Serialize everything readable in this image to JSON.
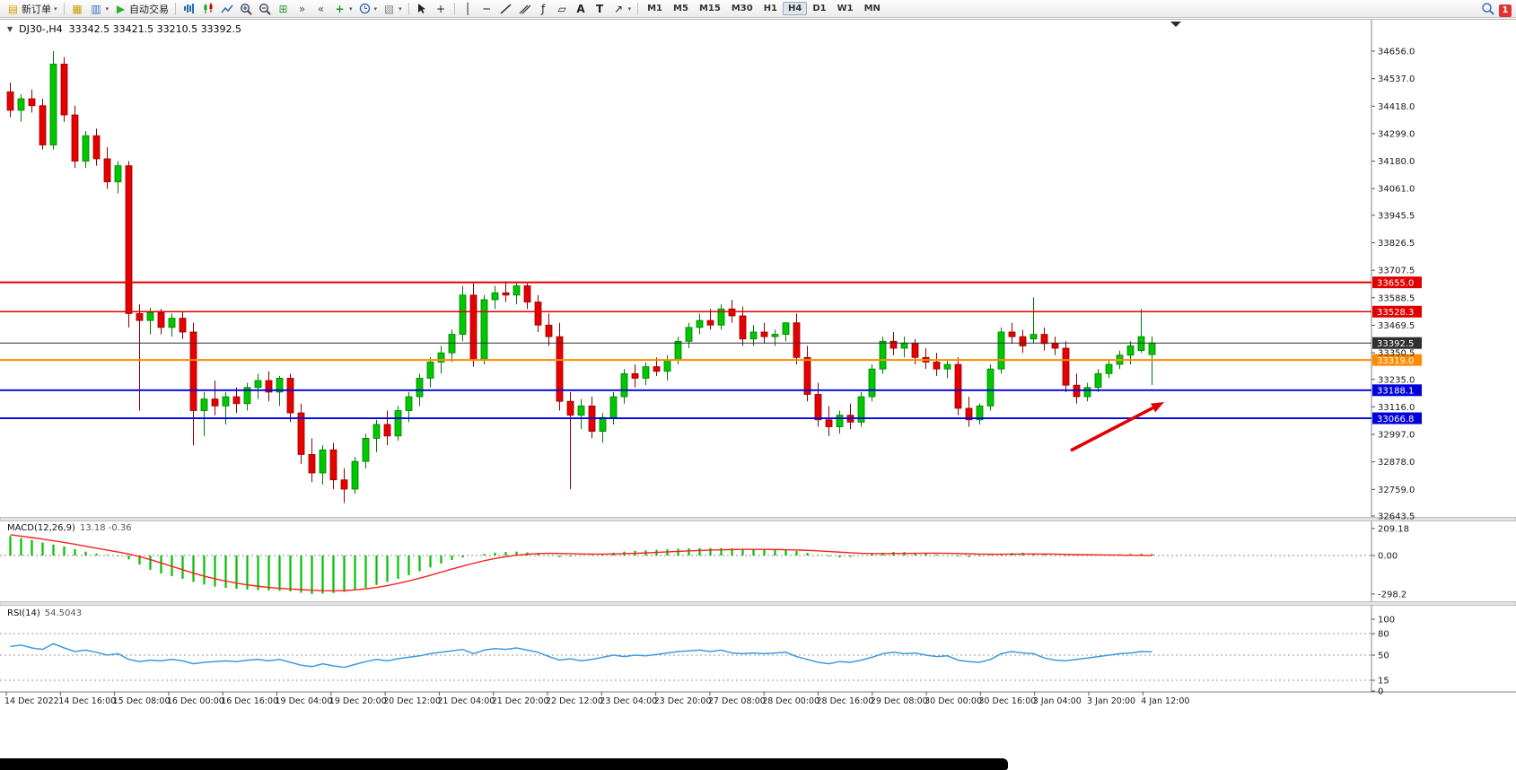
{
  "toolbar": {
    "new_order_label": "新订单",
    "auto_trading_label": "自动交易",
    "notification_count": "1",
    "timeframes": [
      "M1",
      "M5",
      "M15",
      "M30",
      "H1",
      "H4",
      "D1",
      "W1",
      "MN"
    ],
    "active_timeframe": "H4",
    "groups": [
      [
        {
          "name": "new-order-button",
          "icon": "doc",
          "icon_color": "#d9a300",
          "label_key": "new_order_label",
          "caret": true
        }
      ],
      [
        {
          "name": "charts-button",
          "icon": "chartwin",
          "icon_color": "#c8a000"
        },
        {
          "name": "profiles-button",
          "icon": "folder",
          "icon_color": "#3b6fc4",
          "caret": true
        },
        {
          "name": "auto-trading-button",
          "icon": "play",
          "icon_color": "#28b428",
          "label_key": "auto_trading_label"
        }
      ],
      [
        {
          "name": "bar-chart-button",
          "icon": "bars",
          "icon_color": "#1f6fb4"
        },
        {
          "name": "candle-chart-button",
          "icon": "candles",
          "icon_color": "#008000"
        },
        {
          "name": "line-chart-button",
          "icon": "linechart",
          "icon_color": "#1f6fb4"
        },
        {
          "name": "zoom-in-button",
          "icon": "zoomin",
          "icon_color": "#444444"
        },
        {
          "name": "zoom-out-button",
          "icon": "zoomout",
          "icon_color": "#444444"
        },
        {
          "name": "tile-windows-button",
          "icon": "tile",
          "icon_color": "#2f9e2f"
        },
        {
          "name": "auto-scroll-button",
          "icon": "autoscroll",
          "icon_color": "#555555"
        },
        {
          "name": "chart-shift-button",
          "icon": "shift",
          "icon_color": "#555555"
        },
        {
          "name": "indicators-button",
          "icon": "indicator",
          "icon_color": "#1f9e1f",
          "caret": true
        },
        {
          "name": "periods-button",
          "icon": "clock",
          "icon_color": "#2b62b0",
          "caret": true
        },
        {
          "name": "templates-button",
          "icon": "template",
          "icon_color": "#888888",
          "caret": true
        }
      ],
      [
        {
          "name": "cursor-button",
          "icon": "cursor",
          "icon_color": "#222222"
        },
        {
          "name": "crosshair-button",
          "icon": "crosshair",
          "icon_color": "#222222"
        }
      ],
      [
        {
          "name": "vertical-line-button",
          "icon": "vline",
          "icon_color": "#222222"
        },
        {
          "name": "horizontal-line-button",
          "icon": "hline",
          "icon_color": "#222222"
        },
        {
          "name": "trendline-button",
          "icon": "trend",
          "icon_color": "#222222"
        },
        {
          "name": "channel-button",
          "icon": "channel",
          "icon_color": "#222222"
        },
        {
          "name": "fibonacci-button",
          "icon": "fibo",
          "icon_color": "#222222"
        },
        {
          "name": "shapes-button",
          "icon": "shapes",
          "icon_color": "#222222"
        },
        {
          "name": "text-button",
          "icon": "textA",
          "icon_color": "#222222"
        },
        {
          "name": "label-button",
          "icon": "textT",
          "icon_color": "#222222"
        },
        {
          "name": "arrows-button",
          "icon": "arrowtool",
          "icon_color": "#222222",
          "caret": true
        }
      ]
    ]
  },
  "chart_header": {
    "collapse_icon": "▼",
    "symbol_period": "DJ30-,H4",
    "ohlc": "33342.5 33421.5 33210.5 33392.5"
  },
  "indicators": {
    "macd_label": "MACD(12,26,9)",
    "macd_values": "13.18 -0.36",
    "rsi_label": "RSI(14)",
    "rsi_value": "54.5043"
  },
  "chart_data": {
    "type": "candlestick",
    "symbol": "DJ30-",
    "timeframe": "H4",
    "current_bar": {
      "open": 33342.5,
      "high": 33421.5,
      "low": 33210.5,
      "close": 33392.5
    },
    "up_color": "#00C800",
    "down_color": "#E80000",
    "price_axis": {
      "min": 32643.5,
      "max": 34656.0,
      "labels": [
        "34656.0",
        "34537.0",
        "34418.0",
        "34299.0",
        "34180.0",
        "34061.0",
        "33945.5",
        "33826.5",
        "33707.5",
        "33588.5",
        "33469.5",
        "33350.5",
        "33235.0",
        "33116.0",
        "32997.0",
        "32878.0",
        "32759.0",
        "32643.5"
      ]
    },
    "hlines": [
      {
        "price": 33655.0,
        "badge": "33655.0",
        "color": "#E00000",
        "width": 2
      },
      {
        "price": 33528.3,
        "badge": "33528.3",
        "color": "#E00000",
        "width": 1.4
      },
      {
        "price": 33392.5,
        "badge": "33392.5",
        "color": "#303030",
        "width": 1
      },
      {
        "price": 33319.0,
        "badge": "33319.0",
        "color": "#FF8C00",
        "width": 2
      },
      {
        "price": 33188.1,
        "badge": "33188.1",
        "color": "#0000DC",
        "width": 1.8
      },
      {
        "price": 33066.8,
        "badge": "33066.8",
        "color": "#0000DC",
        "width": 1.8
      }
    ],
    "candles": [
      [
        34480,
        34520,
        34370,
        34400
      ],
      [
        34400,
        34470,
        34350,
        34450
      ],
      [
        34450,
        34490,
        34390,
        34420
      ],
      [
        34420,
        34450,
        34230,
        34250
      ],
      [
        34250,
        34656,
        34230,
        34600
      ],
      [
        34600,
        34630,
        34350,
        34380
      ],
      [
        34380,
        34420,
        34150,
        34180
      ],
      [
        34180,
        34310,
        34150,
        34290
      ],
      [
        34290,
        34320,
        34160,
        34190
      ],
      [
        34190,
        34240,
        34060,
        34090
      ],
      [
        34090,
        34180,
        34040,
        34160
      ],
      [
        34160,
        34180,
        33460,
        33520
      ],
      [
        33520,
        33560,
        33100,
        33490
      ],
      [
        33490,
        33545,
        33430,
        33525
      ],
      [
        33525,
        33540,
        33430,
        33460
      ],
      [
        33460,
        33520,
        33420,
        33500
      ],
      [
        33500,
        33530,
        33410,
        33440
      ],
      [
        33440,
        33480,
        32950,
        33100
      ],
      [
        33100,
        33180,
        32990,
        33150
      ],
      [
        33150,
        33230,
        33080,
        33120
      ],
      [
        33120,
        33180,
        33040,
        33160
      ],
      [
        33160,
        33200,
        33090,
        33130
      ],
      [
        33130,
        33220,
        33100,
        33200
      ],
      [
        33200,
        33260,
        33150,
        33230
      ],
      [
        33230,
        33270,
        33140,
        33180
      ],
      [
        33180,
        33250,
        33120,
        33240
      ],
      [
        33240,
        33260,
        33050,
        33090
      ],
      [
        33090,
        33130,
        32870,
        32910
      ],
      [
        32910,
        32980,
        32790,
        32830
      ],
      [
        32830,
        32950,
        32780,
        32930
      ],
      [
        32930,
        32960,
        32760,
        32800
      ],
      [
        32800,
        32850,
        32700,
        32760
      ],
      [
        32760,
        32900,
        32740,
        32880
      ],
      [
        32880,
        33000,
        32850,
        32980
      ],
      [
        32980,
        33060,
        32920,
        33040
      ],
      [
        33040,
        33100,
        32950,
        32990
      ],
      [
        32990,
        33120,
        32970,
        33100
      ],
      [
        33100,
        33180,
        33050,
        33160
      ],
      [
        33160,
        33260,
        33120,
        33240
      ],
      [
        33240,
        33330,
        33200,
        33310
      ],
      [
        33310,
        33380,
        33260,
        33350
      ],
      [
        33350,
        33450,
        33310,
        33430
      ],
      [
        33430,
        33640,
        33400,
        33600
      ],
      [
        33600,
        33650,
        33290,
        33320
      ],
      [
        33320,
        33600,
        33300,
        33580
      ],
      [
        33580,
        33640,
        33540,
        33610
      ],
      [
        33610,
        33660,
        33570,
        33600
      ],
      [
        33600,
        33655,
        33560,
        33640
      ],
      [
        33640,
        33650,
        33540,
        33570
      ],
      [
        33570,
        33600,
        33440,
        33470
      ],
      [
        33470,
        33520,
        33380,
        33420
      ],
      [
        33420,
        33480,
        33100,
        33140
      ],
      [
        33140,
        33180,
        32760,
        33080
      ],
      [
        33080,
        33150,
        33020,
        33120
      ],
      [
        33120,
        33160,
        32980,
        33010
      ],
      [
        33010,
        33090,
        32960,
        33070
      ],
      [
        33070,
        33180,
        33040,
        33160
      ],
      [
        33160,
        33280,
        33130,
        33260
      ],
      [
        33260,
        33300,
        33200,
        33240
      ],
      [
        33240,
        33310,
        33210,
        33290
      ],
      [
        33290,
        33330,
        33250,
        33270
      ],
      [
        33270,
        33340,
        33230,
        33320
      ],
      [
        33320,
        33420,
        33300,
        33400
      ],
      [
        33400,
        33480,
        33370,
        33460
      ],
      [
        33460,
        33520,
        33430,
        33490
      ],
      [
        33490,
        33540,
        33450,
        33470
      ],
      [
        33470,
        33560,
        33450,
        33540
      ],
      [
        33540,
        33580,
        33480,
        33510
      ],
      [
        33510,
        33550,
        33380,
        33410
      ],
      [
        33410,
        33470,
        33380,
        33440
      ],
      [
        33440,
        33480,
        33390,
        33420
      ],
      [
        33420,
        33450,
        33380,
        33430
      ],
      [
        33430,
        33470,
        33400,
        33480
      ],
      [
        33480,
        33520,
        33300,
        33330
      ],
      [
        33330,
        33380,
        33140,
        33170
      ],
      [
        33170,
        33220,
        33030,
        33060
      ],
      [
        33060,
        33120,
        32990,
        33030
      ],
      [
        33030,
        33100,
        33000,
        33080
      ],
      [
        33080,
        33130,
        33020,
        33050
      ],
      [
        33050,
        33180,
        33030,
        33160
      ],
      [
        33160,
        33300,
        33140,
        33280
      ],
      [
        33280,
        33420,
        33260,
        33400
      ],
      [
        33400,
        33440,
        33340,
        33370
      ],
      [
        33370,
        33420,
        33330,
        33390
      ],
      [
        33390,
        33410,
        33300,
        33330
      ],
      [
        33330,
        33370,
        33280,
        33310
      ],
      [
        33310,
        33350,
        33250,
        33280
      ],
      [
        33280,
        33320,
        33240,
        33300
      ],
      [
        33300,
        33330,
        33080,
        33110
      ],
      [
        33110,
        33160,
        33030,
        33060
      ],
      [
        33060,
        33130,
        33040,
        33120
      ],
      [
        33120,
        33300,
        33100,
        33280
      ],
      [
        33280,
        33460,
        33260,
        33440
      ],
      [
        33440,
        33480,
        33390,
        33420
      ],
      [
        33420,
        33450,
        33350,
        33380
      ],
      [
        33410,
        33590,
        33390,
        33430
      ],
      [
        33430,
        33460,
        33360,
        33390
      ],
      [
        33390,
        33420,
        33340,
        33370
      ],
      [
        33370,
        33400,
        33180,
        33210
      ],
      [
        33210,
        33260,
        33130,
        33160
      ],
      [
        33160,
        33220,
        33140,
        33200
      ],
      [
        33200,
        33280,
        33180,
        33260
      ],
      [
        33260,
        33320,
        33240,
        33300
      ],
      [
        33300,
        33360,
        33280,
        33340
      ],
      [
        33340,
        33400,
        33300,
        33380
      ],
      [
        33360,
        33540,
        33350,
        33420
      ],
      [
        33342.5,
        33421.5,
        33210.5,
        33392.5
      ]
    ],
    "time_axis": [
      "14 Dec 2022",
      "14 Dec 16:00",
      "15 Dec 08:00",
      "16 Dec 00:00",
      "16 Dec 16:00",
      "19 Dec 04:00",
      "19 Dec 20:00",
      "20 Dec 12:00",
      "21 Dec 04:00",
      "21 Dec 20:00",
      "22 Dec 12:00",
      "23 Dec 04:00",
      "23 Dec 20:00",
      "27 Dec 08:00",
      "28 Dec 00:00",
      "28 Dec 16:00",
      "29 Dec 08:00",
      "30 Dec 00:00",
      "30 Dec 16:00",
      "3 Jan 04:00",
      "3 Jan 20:00",
      "4 Jan 12:00"
    ],
    "macd": {
      "scale_labels": [
        "209.18",
        "0.00",
        "-298.2"
      ],
      "hist_color": "#00C000",
      "signal_color": "#FF2020",
      "hist": [
        150,
        135,
        120,
        100,
        85,
        70,
        50,
        30,
        15,
        5,
        -5,
        -30,
        -70,
        -110,
        -140,
        -160,
        -180,
        -205,
        -225,
        -240,
        -250,
        -258,
        -263,
        -267,
        -270,
        -273,
        -278,
        -288,
        -298,
        -295,
        -290,
        -282,
        -268,
        -250,
        -228,
        -205,
        -180,
        -152,
        -122,
        -92,
        -62,
        -35,
        -15,
        0,
        12,
        22,
        28,
        30,
        24,
        12,
        -2,
        -12,
        -8,
        -2,
        4,
        12,
        22,
        30,
        36,
        40,
        44,
        48,
        52,
        55,
        57,
        58,
        58,
        56,
        53,
        50,
        47,
        45,
        44,
        35,
        20,
        5,
        -8,
        -14,
        -10,
        0,
        12,
        22,
        28,
        27,
        22,
        15,
        8,
        2,
        -8,
        -12,
        -6,
        4,
        14,
        20,
        22,
        16,
        8,
        2,
        -4,
        -2,
        2,
        6,
        9,
        11,
        13,
        14,
        13.18
      ],
      "signal": [
        160,
        150,
        139,
        127,
        114,
        101,
        87,
        72,
        57,
        42,
        27,
        12,
        -8,
        -32,
        -58,
        -84,
        -110,
        -136,
        -160,
        -180,
        -198,
        -214,
        -227,
        -238,
        -247,
        -254,
        -259,
        -264,
        -269,
        -272,
        -273,
        -271,
        -266,
        -258,
        -247,
        -233,
        -216,
        -197,
        -176,
        -153,
        -129,
        -105,
        -82,
        -60,
        -40,
        -23,
        -9,
        2,
        10,
        15,
        17,
        16,
        14,
        12,
        11,
        11,
        12,
        14,
        17,
        20,
        24,
        28,
        32,
        36,
        39,
        42,
        44,
        46,
        47,
        47,
        47,
        46,
        45,
        43,
        40,
        36,
        31,
        26,
        21,
        17,
        15,
        14,
        15,
        16,
        17,
        18,
        18,
        17,
        15,
        13,
        11,
        10,
        10,
        11,
        12,
        12,
        12,
        11,
        9,
        7,
        6,
        5,
        4,
        3,
        2,
        1,
        -0.36
      ]
    },
    "rsi": {
      "scale_labels": [
        "100",
        "80",
        "50",
        "15",
        "0"
      ],
      "levels": [
        80,
        50,
        15
      ],
      "color": "#3E9ADE",
      "values": [
        62,
        64,
        60,
        58,
        66,
        60,
        55,
        57,
        54,
        50,
        52,
        44,
        41,
        43,
        42,
        44,
        42,
        38,
        40,
        41,
        42,
        41,
        43,
        44,
        42,
        44,
        40,
        36,
        34,
        38,
        35,
        33,
        37,
        41,
        44,
        42,
        45,
        47,
        49,
        52,
        54,
        56,
        58,
        52,
        57,
        59,
        58,
        60,
        57,
        54,
        48,
        43,
        45,
        42,
        44,
        47,
        50,
        48,
        50,
        49,
        51,
        53,
        55,
        56,
        57,
        55,
        57,
        53,
        52,
        53,
        52,
        53,
        54,
        48,
        44,
        40,
        38,
        41,
        40,
        43,
        47,
        52,
        54,
        52,
        53,
        50,
        48,
        49,
        43,
        41,
        40,
        44,
        52,
        55,
        53,
        52,
        46,
        43,
        42,
        44,
        46,
        48,
        50,
        52,
        53,
        55,
        54.5
      ]
    },
    "annotation_arrow": {
      "from": [
        1193,
        502
      ],
      "to": [
        1297,
        448
      ],
      "color": "#E00000"
    }
  }
}
